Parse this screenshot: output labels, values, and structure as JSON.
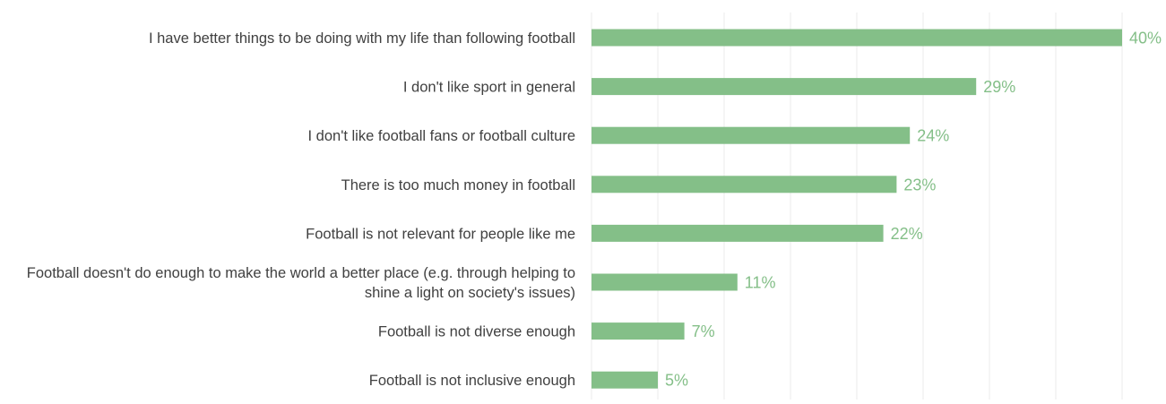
{
  "chart_data": {
    "type": "bar",
    "orientation": "horizontal",
    "categories": [
      "I have better things to be doing with my life than following football",
      "I don't like sport in general",
      "I don't like football fans or football culture",
      "There is too much money in football",
      "Football is not relevant for people like me",
      "Football doesn't do enough to make the world a better place (e.g. through helping to shine a light on society's issues)",
      "Football is not diverse enough",
      "Football is not inclusive enough"
    ],
    "category_lines": [
      [
        "I have better things to be doing with my life than following football"
      ],
      [
        "I don't like sport in general"
      ],
      [
        "I don't like football fans or football culture"
      ],
      [
        "There is too much money in football"
      ],
      [
        "Football is not relevant for people like me"
      ],
      [
        "Football doesn't do enough to make the world a better place (e.g. through helping to",
        "shine a light on society's issues)"
      ],
      [
        "Football is not diverse enough"
      ],
      [
        "Football is not inclusive enough"
      ]
    ],
    "values": [
      40,
      29,
      24,
      23,
      22,
      11,
      7,
      5
    ],
    "value_labels": [
      "40%",
      "29%",
      "24%",
      "23%",
      "22%",
      "11%",
      "7%",
      "5%"
    ],
    "unit": "%",
    "xlim": [
      0,
      40
    ],
    "grid": true,
    "legend": "none",
    "title": "",
    "xlabel": "",
    "ylabel": "",
    "colors": {
      "bar": "#84bf88",
      "label": "#84bf88",
      "category_text": "#404040",
      "grid": "#ebebeb"
    }
  }
}
